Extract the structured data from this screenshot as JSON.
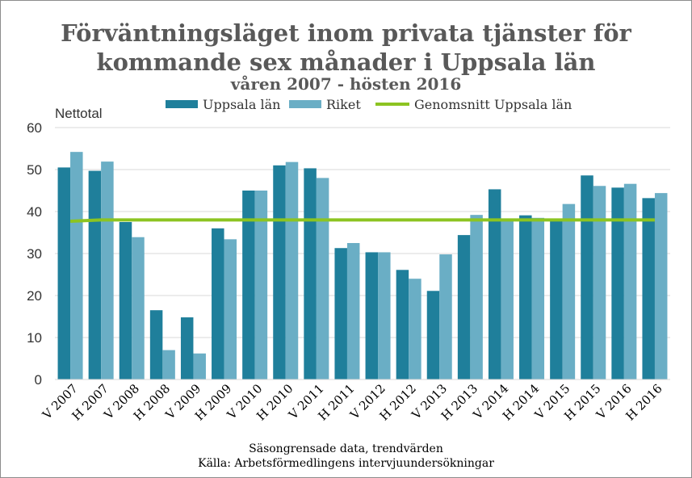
{
  "chart_data": {
    "type": "bar",
    "title": "Förväntningsläget inom privata tjänster för",
    "title_line2": "kommande sex månader i Uppsala län",
    "subtitle": "våren 2007 - hösten 2016",
    "ylabel": "Nettotal",
    "ylim": [
      0,
      60
    ],
    "yticks": [
      0,
      10,
      20,
      30,
      40,
      50,
      60
    ],
    "grid": true,
    "legend_position": "top",
    "categories": [
      "V 2007",
      "H 2007",
      "V 2008",
      "H 2008",
      "V 2009",
      "H 2009",
      "V 2010",
      "H 2010",
      "V 2011",
      "H 2011",
      "V 2012",
      "H 2012",
      "V 2013",
      "H 2013",
      "V 2014",
      "H 2014",
      "V 2015",
      "H 2015",
      "V 2016",
      "H 2016"
    ],
    "series": [
      {
        "name": "Uppsala län",
        "type": "bar",
        "color": "#1f7f9b",
        "values": [
          50.5,
          49.7,
          37.5,
          16.5,
          14.8,
          36.0,
          45.0,
          51.0,
          50.3,
          31.3,
          30.3,
          26.1,
          21.1,
          34.4,
          45.3,
          39.1,
          38.2,
          48.6,
          45.7,
          43.2
        ]
      },
      {
        "name": "Riket",
        "type": "bar",
        "color": "#6aaec5",
        "values": [
          54.2,
          51.9,
          33.9,
          7.0,
          6.2,
          33.4,
          45.0,
          51.8,
          48.0,
          32.5,
          30.3,
          24.0,
          29.8,
          39.2,
          37.8,
          38.5,
          41.8,
          46.1,
          46.6,
          44.4
        ]
      },
      {
        "name": "Genomsnitt Uppsala län",
        "type": "line",
        "color": "#8cc421",
        "values": [
          37.7,
          38.0,
          38.0,
          38.0,
          38.0,
          38.0,
          38.0,
          38.0,
          38.0,
          38.0,
          38.0,
          38.0,
          38.0,
          38.0,
          38.0,
          38.0,
          38.0,
          38.0,
          38.0,
          38.0
        ]
      }
    ],
    "footnote": "Säsongrensade data, trendvärden",
    "source": "Källa: Arbetsförmedlingens intervjuundersökningar"
  }
}
